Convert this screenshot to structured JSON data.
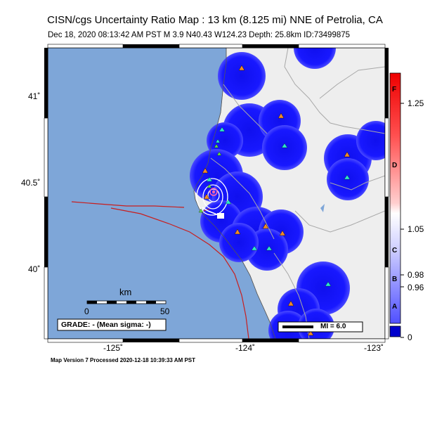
{
  "header": {
    "title": "CISN/cgs Uncertainty Ratio Map : 13 km (8.125 mi) NNE of Petrolia, CA",
    "subtitle": "Dec 18, 2020 08:13:42 AM PST   M 3.9   N40.43 W124.23   Depth: 25.8km   ID:73499875"
  },
  "footer": {
    "map_version": "Map Version 7 Processed 2020-12-18 10:39:33 AM PST"
  },
  "axes": {
    "lat_labels": [
      "41˚",
      "40.5˚",
      "40˚"
    ],
    "lon_labels": [
      "-125˚",
      "-124˚",
      "-123˚"
    ]
  },
  "scalebar": {
    "unit": "km",
    "start": "0",
    "end": "50"
  },
  "grade_box": {
    "text": "GRADE: - (Mean sigma: -)"
  },
  "mi_legend": {
    "text": "MI = 6.0"
  },
  "colorbar": {
    "ticks": [
      "1.25",
      "1.05",
      "0.98",
      "0.96",
      "0"
    ],
    "letters": [
      "F",
      "D",
      "C",
      "B",
      "A"
    ],
    "colors": {
      "top": "#ff0000",
      "upper_mid": "#ff8080",
      "mid": "#ffffff",
      "lower_mid": "#8080ff",
      "bottom": "#0000cc"
    }
  },
  "map_colors": {
    "ocean": "#7ea6d8",
    "land": "#eeeeee",
    "uncertainty": "#1a1aff",
    "fault": "#c81e1e",
    "roads": "#a0a0a0"
  },
  "epicenter": {
    "lat": 40.43,
    "lon": -124.23,
    "depth_km": 25.8,
    "magnitude": 3.9
  }
}
